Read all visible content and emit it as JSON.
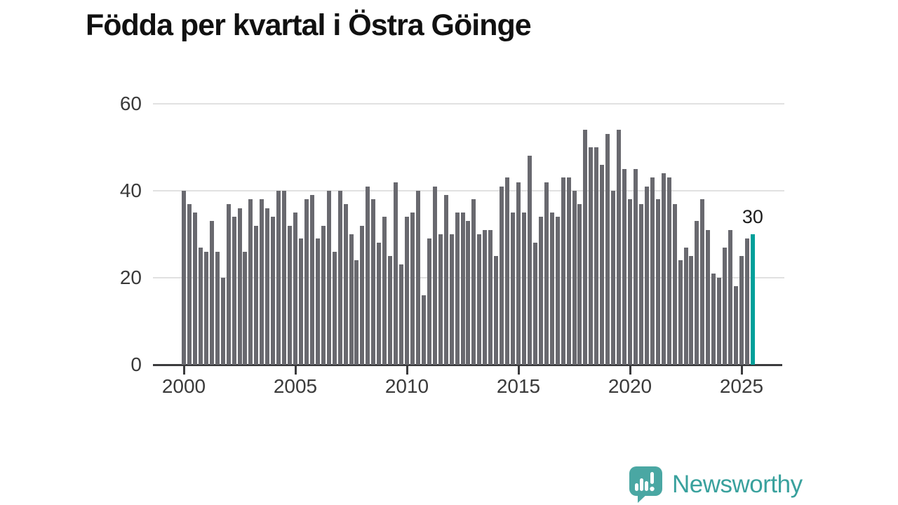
{
  "title": "Födda per kvartal i Östra Göinge",
  "branding": {
    "name": "Newsworthy",
    "icon": "speech-bubble-bar-chart-icon"
  },
  "colors": {
    "bar": "#69696f",
    "highlight": "#00a09a",
    "grid": "#e1e1e1",
    "axis": "#3b3b3d",
    "tick_text": "#3a3a3a",
    "title_text": "#111111",
    "brand": "#39a19d",
    "brand_icon": "#4aa7a3"
  },
  "chart_data": {
    "type": "bar",
    "title": "Födda per kvartal i Östra Göinge",
    "frequency": "quarterly",
    "x_start": "2000-Q1",
    "x_end": "2025-Q3",
    "values": [
      40,
      37,
      35,
      27,
      26,
      33,
      26,
      20,
      37,
      34,
      36,
      26,
      38,
      32,
      38,
      36,
      34,
      40,
      40,
      32,
      35,
      29,
      38,
      39,
      29,
      32,
      40,
      26,
      40,
      37,
      30,
      24,
      32,
      41,
      38,
      28,
      34,
      25,
      42,
      23,
      34,
      35,
      40,
      16,
      29,
      41,
      30,
      39,
      30,
      35,
      35,
      33,
      38,
      30,
      31,
      31,
      25,
      41,
      43,
      35,
      42,
      35,
      48,
      28,
      34,
      42,
      35,
      34,
      43,
      43,
      40,
      37,
      54,
      50,
      50,
      46,
      53,
      40,
      54,
      45,
      38,
      45,
      37,
      41,
      43,
      38,
      44,
      43,
      37,
      24,
      27,
      25,
      33,
      38,
      31,
      21,
      20,
      27,
      31,
      18,
      25,
      29,
      30
    ],
    "highlight_last": true,
    "last_value_label": "30",
    "x_tick_years": [
      2000,
      2005,
      2010,
      2015,
      2020,
      2025
    ],
    "x_tick_labels": [
      "2000",
      "2005",
      "2010",
      "2015",
      "2020",
      "2025"
    ],
    "y_ticks": [
      0,
      20,
      40,
      60
    ],
    "y_tick_labels": [
      "0",
      "20",
      "40",
      "60"
    ],
    "ylim": [
      0,
      60
    ],
    "grid": "horizontal",
    "legend": "none"
  }
}
